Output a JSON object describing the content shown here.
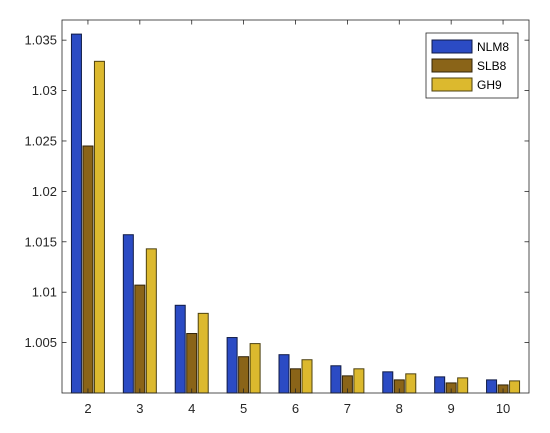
{
  "chart_data": {
    "type": "bar",
    "title": "",
    "xlabel": "",
    "ylabel": "",
    "categories": [
      "2",
      "3",
      "4",
      "5",
      "6",
      "7",
      "8",
      "9",
      "10"
    ],
    "ylim": [
      1.0,
      1.037
    ],
    "yticks": [
      "1.005",
      "1.01",
      "1.015",
      "1.02",
      "1.025",
      "1.03",
      "1.035"
    ],
    "ytick_values": [
      1.005,
      1.01,
      1.015,
      1.02,
      1.025,
      1.03,
      1.035
    ],
    "grid": false,
    "legend_position": "top-right",
    "series": [
      {
        "name": "NLM8",
        "color": "#2b4bc4",
        "values": [
          1.0356,
          1.0157,
          1.0087,
          1.0055,
          1.0038,
          1.0027,
          1.0021,
          1.0016,
          1.0013
        ]
      },
      {
        "name": "SLB8",
        "color": "#8a6418",
        "values": [
          1.0245,
          1.0107,
          1.0059,
          1.0036,
          1.0024,
          1.0017,
          1.0013,
          1.001,
          1.0008
        ]
      },
      {
        "name": "GH9",
        "color": "#dcb92e",
        "values": [
          1.0329,
          1.0143,
          1.0079,
          1.0049,
          1.0033,
          1.0024,
          1.0019,
          1.0015,
          1.0012
        ]
      }
    ]
  }
}
